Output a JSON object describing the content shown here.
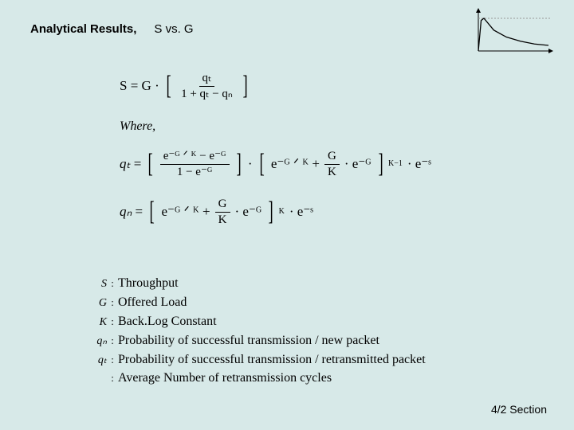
{
  "header": {
    "title1": "Analytical Results,",
    "title2": "S vs. G"
  },
  "mini_graph": {
    "type": "line",
    "axis_color": "#000000",
    "curve_color": "#000000",
    "dashed_color": "#999999",
    "background": "#d7e9e8",
    "xlim": [
      0,
      100
    ],
    "ylim": [
      0,
      55
    ],
    "curve_points": [
      [
        0,
        0
      ],
      [
        4,
        44
      ],
      [
        8,
        47
      ],
      [
        22,
        30
      ],
      [
        40,
        20
      ],
      [
        60,
        14
      ],
      [
        80,
        10
      ],
      [
        100,
        8
      ]
    ],
    "dashed_y": 47
  },
  "equations": {
    "eq1": {
      "lhs": "S = G ·",
      "frac_num": "qₜ",
      "frac_den": "1 + qₜ − qₙ"
    },
    "where": "Where,",
    "eq2": {
      "lhs_sym": "qₜ",
      "f1_num": "e⁻ᴳ ᐟ ᴷ − e⁻ᴳ",
      "f1_den": "1 − e⁻ᴳ",
      "mid": "· ",
      "b2": "e⁻ᴳ ᐟ ᴷ + ",
      "f2_num": "G",
      "f2_den": "K",
      "b2_tail": "· e⁻ᴳ",
      "exp": "K−1",
      "tail": "· e⁻ˢ"
    },
    "eq3": {
      "lhs_sym": "qₙ",
      "b1": "e⁻ᴳ ᐟ ᴷ + ",
      "f_num": "G",
      "f_den": "K",
      "b1_tail": "· e⁻ᴳ",
      "exp": "K",
      "tail": "· e⁻ˢ"
    }
  },
  "definitions": [
    {
      "sym": "S",
      "text": "Throughput"
    },
    {
      "sym": "G",
      "text": "Offered Load"
    },
    {
      "sym": "K",
      "text": "Back.Log  Constant"
    },
    {
      "sym": "qₙ",
      "text": "Probability of successful transmission /  new packet"
    },
    {
      "sym": "qₜ",
      "text": "Probability of successful transmission /  retransmitted packet"
    },
    {
      "sym": "",
      "text": "Average Number of retransmission cycles"
    }
  ],
  "footer": "4/2 Section"
}
